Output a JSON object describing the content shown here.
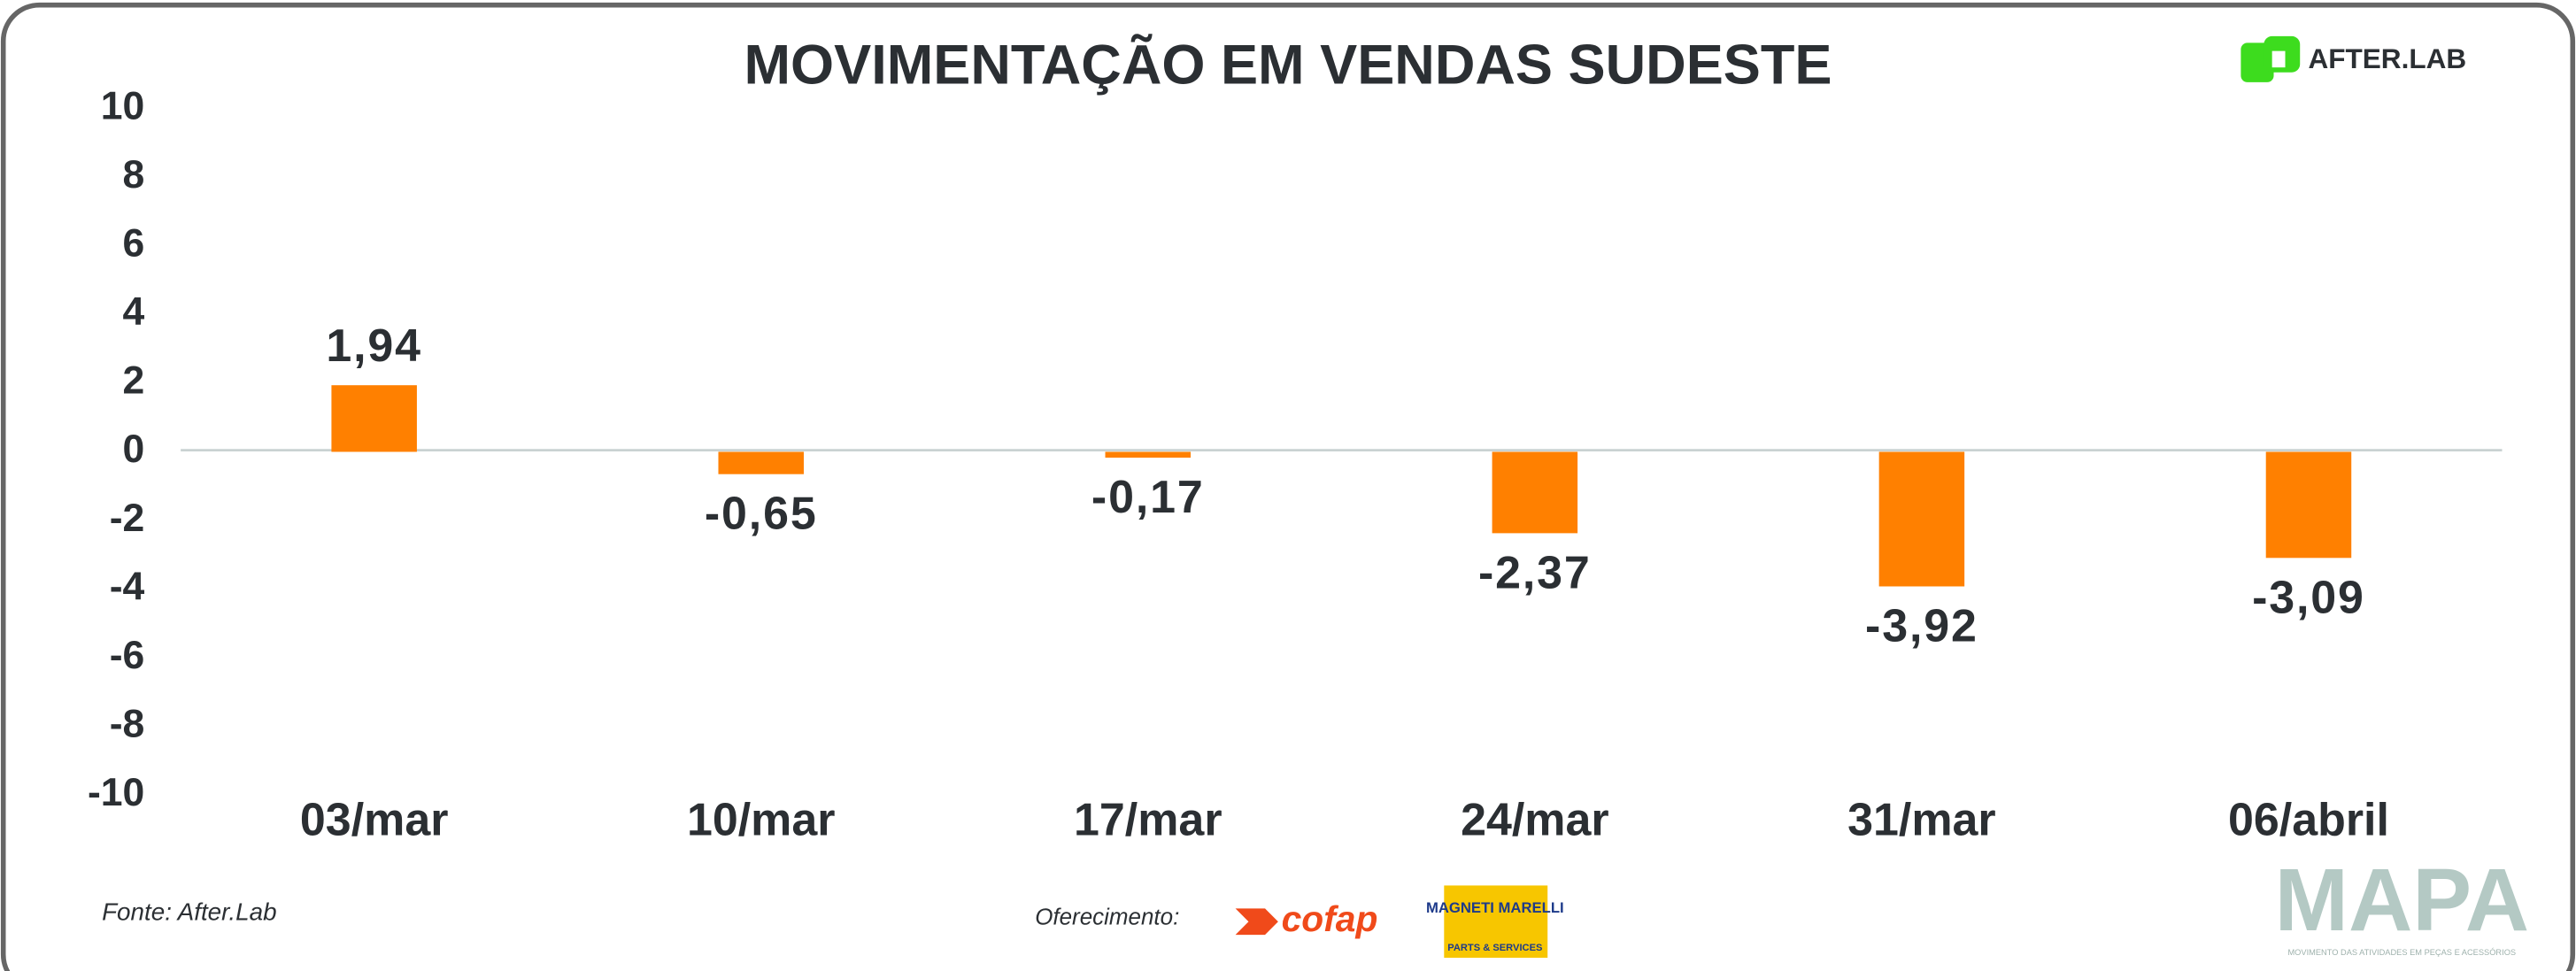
{
  "chart_data": {
    "type": "bar",
    "title": "MOVIMENTAÇÃO EM VENDAS SUDESTE",
    "categories": [
      "03/mar",
      "10/mar",
      "17/mar",
      "24/mar",
      "31/mar",
      "06/abril"
    ],
    "values": [
      1.94,
      -0.65,
      -0.17,
      -2.37,
      -3.92,
      -3.09
    ],
    "value_labels": [
      "1,94",
      "-0,65",
      "-0,17",
      "-2,37",
      "-3,92",
      "-3,09"
    ],
    "color": "#ff8000",
    "ylim": [
      -10,
      10
    ],
    "yticks": [
      -10,
      -8,
      -6,
      -4,
      -2,
      0,
      2,
      4,
      6,
      8,
      10
    ],
    "grid": false
  },
  "footer": {
    "source": "Fonte: After.Lab",
    "sponsor_label": "Oferecimento:"
  },
  "logos": {
    "afterlab": "AFTER.LAB",
    "cofap": "cofap",
    "magneti": "MAGNETI MARELLI",
    "magneti_sub": "PARTS & SERVICES",
    "mapa": "MAPA",
    "mapa_tagline": "MOVIMENTO DAS ATIVIDADES EM PEÇAS E ACESSÓRIOS"
  }
}
